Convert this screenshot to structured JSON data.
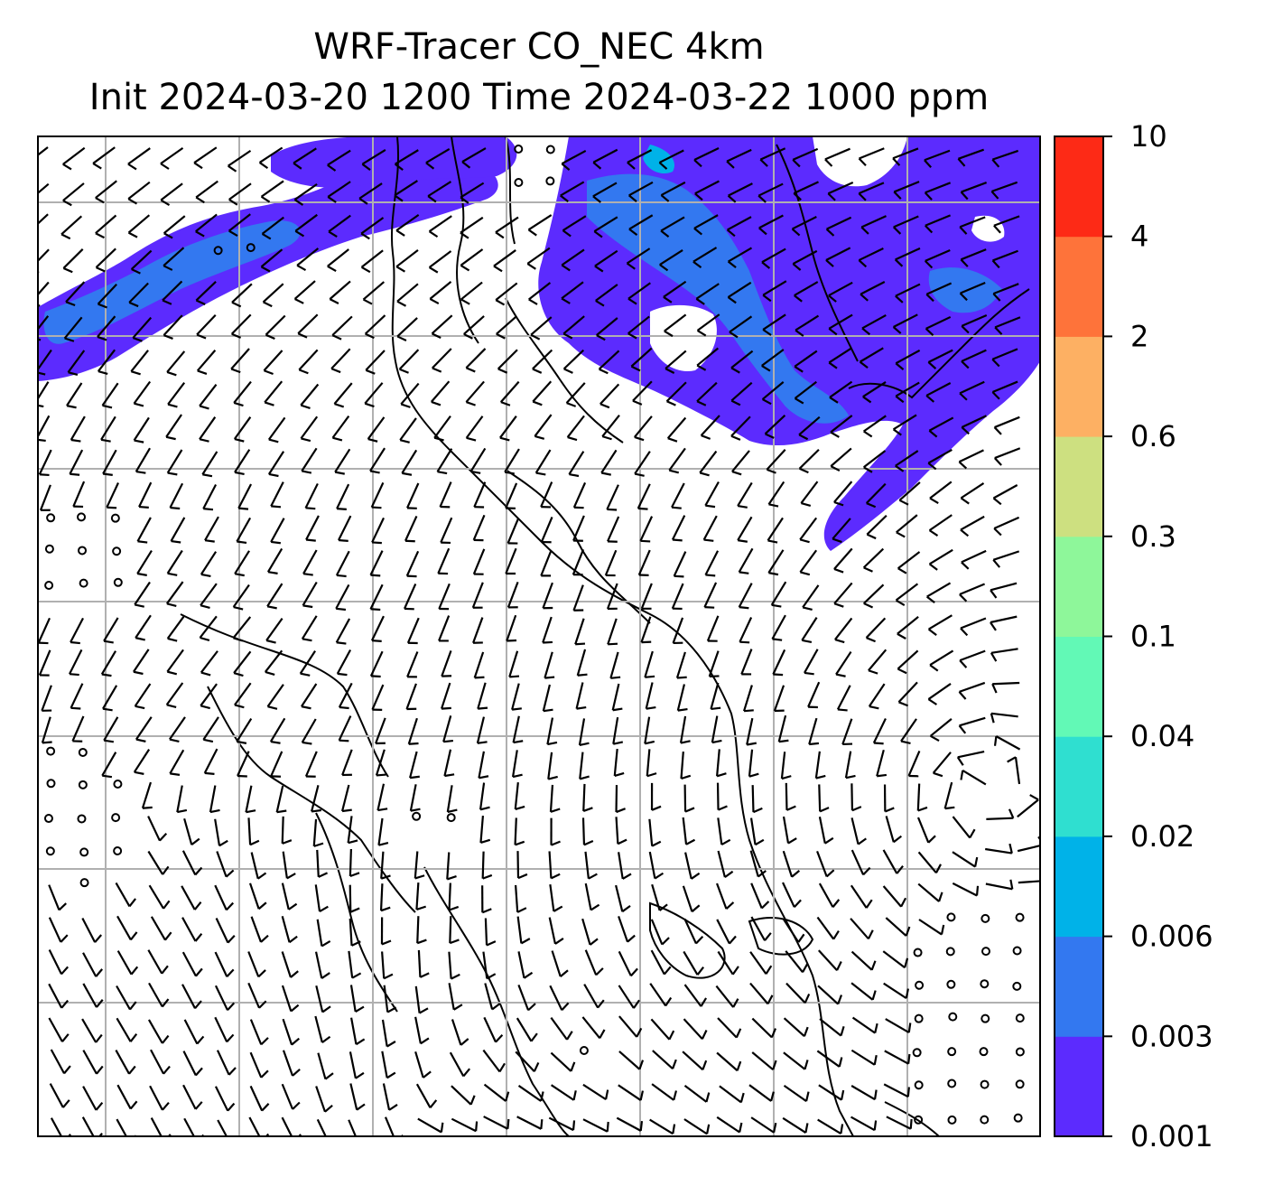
{
  "title": {
    "line1": "WRF-Tracer CO_NEC 4km",
    "line2": "Init 2024-03-20 1200 Time 2024-03-22 1000 ppm"
  },
  "colorbar": {
    "levels": [
      "0.001",
      "0.003",
      "0.006",
      "0.02",
      "0.04",
      "0.1",
      "0.3",
      "0.6",
      "2",
      "4",
      "10"
    ],
    "colors": [
      "#5c2bfe",
      "#3378f0",
      "#00b2e8",
      "#2fdfd0",
      "#62f9b6",
      "#8ef79a",
      "#cde080",
      "#fdb063",
      "#fe733a",
      "#fd2a16"
    ]
  },
  "map": {
    "gridlines": true,
    "wind_barbs": true,
    "coastlines": true
  }
}
